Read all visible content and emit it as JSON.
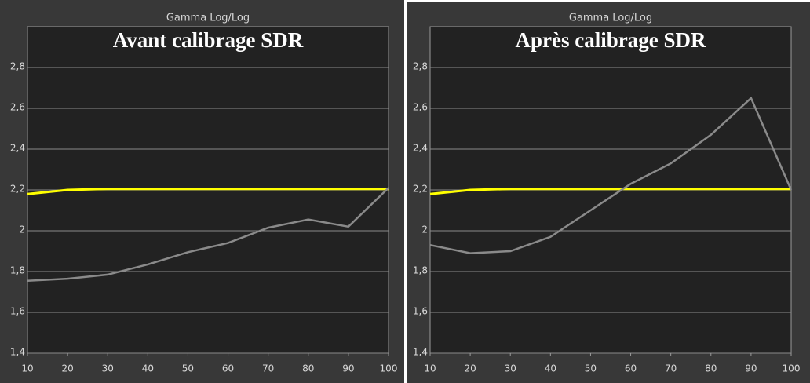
{
  "chart_data": [
    {
      "type": "line",
      "title": "Gamma Log/Log",
      "heading": "Avant calibrage SDR",
      "x": [
        10,
        20,
        30,
        40,
        50,
        60,
        70,
        80,
        90,
        100
      ],
      "series": [
        {
          "color": "#ffff00",
          "values": [
            2.18,
            2.2,
            2.205,
            2.205,
            2.205,
            2.205,
            2.205,
            2.205,
            2.205,
            2.205
          ]
        },
        {
          "color": "#8a8a8a",
          "values": [
            1.755,
            1.765,
            1.785,
            1.835,
            1.895,
            1.94,
            2.015,
            2.055,
            2.02,
            2.21
          ]
        }
      ],
      "xlim": [
        10,
        100
      ],
      "xticks": [
        10,
        20,
        30,
        40,
        50,
        60,
        70,
        80,
        90,
        100
      ],
      "ylim": [
        1.4,
        3.0
      ],
      "yticks": [
        {
          "value": 1.4,
          "label": "1,4"
        },
        {
          "value": 1.6,
          "label": "1,6"
        },
        {
          "value": 1.8,
          "label": "1,8"
        },
        2,
        {
          "value": 2.2,
          "label": "2,2"
        },
        {
          "value": 2.4,
          "label": "2,4"
        },
        {
          "value": 2.6,
          "label": "2,6"
        },
        {
          "value": 2.8,
          "label": "2,8"
        }
      ],
      "grid": true
    },
    {
      "type": "line",
      "title": "Gamma Log/Log",
      "heading": "Après calibrage SDR",
      "x": [
        10,
        20,
        30,
        40,
        50,
        60,
        70,
        80,
        90,
        100
      ],
      "series": [
        {
          "color": "#ffff00",
          "values": [
            2.18,
            2.2,
            2.205,
            2.205,
            2.205,
            2.205,
            2.205,
            2.205,
            2.205,
            2.205
          ]
        },
        {
          "color": "#8a8a8a",
          "values": [
            1.93,
            1.89,
            1.9,
            1.97,
            2.1,
            2.23,
            2.33,
            2.47,
            2.65,
            2.2
          ]
        }
      ],
      "xlim": [
        10,
        100
      ],
      "xticks": [
        10,
        20,
        30,
        40,
        50,
        60,
        70,
        80,
        90,
        100
      ],
      "ylim": [
        1.4,
        3.0
      ],
      "yticks": [
        {
          "value": 1.4,
          "label": "1,4"
        },
        {
          "value": 1.6,
          "label": "1,6"
        },
        {
          "value": 1.8,
          "label": "1,8"
        },
        2,
        {
          "value": 2.2,
          "label": "2,2"
        },
        {
          "value": 2.4,
          "label": "2,4"
        },
        {
          "value": 2.6,
          "label": "2,6"
        },
        {
          "value": 2.8,
          "label": "2,8"
        }
      ],
      "grid": true
    }
  ]
}
